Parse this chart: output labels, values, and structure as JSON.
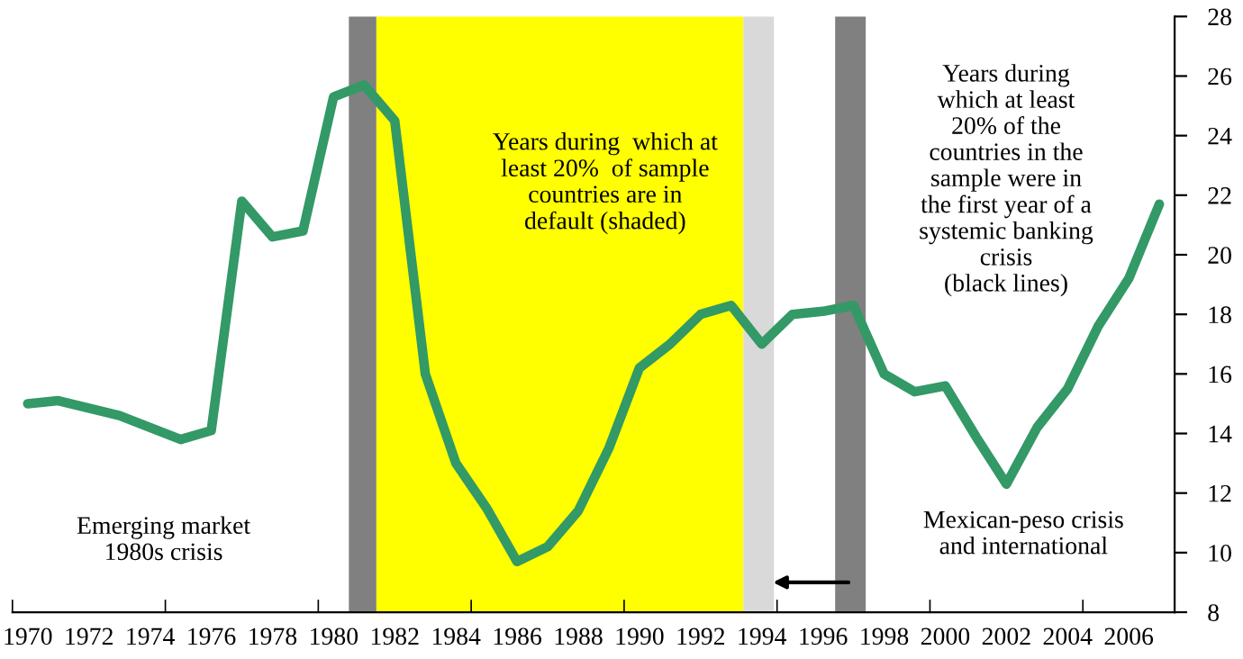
{
  "chart_data": {
    "type": "line",
    "x": [
      1970,
      1971,
      1972,
      1973,
      1974,
      1975,
      1976,
      1977,
      1978,
      1979,
      1980,
      1981,
      1982,
      1983,
      1984,
      1985,
      1986,
      1987,
      1988,
      1989,
      1990,
      1991,
      1992,
      1993,
      1994,
      1995,
      1996,
      1997,
      1998,
      1999,
      2000,
      2001,
      2002,
      2003,
      2004,
      2005,
      2006,
      2007
    ],
    "series": [
      {
        "color": "#339966",
        "values": [
          15.0,
          15.1,
          14.85,
          14.6,
          14.2,
          13.8,
          14.1,
          21.8,
          20.6,
          20.8,
          25.3,
          25.7,
          24.5,
          16.0,
          13.0,
          11.5,
          9.7,
          10.2,
          11.4,
          13.5,
          16.2,
          17.0,
          18.0,
          18.3,
          17.0,
          18.0,
          18.1,
          18.3,
          16.0,
          15.4,
          15.6,
          13.9,
          12.3,
          14.2,
          15.5,
          17.6,
          19.2,
          21.7
        ]
      }
    ],
    "xlim": [
      1969.5,
      2007.5
    ],
    "xticks": [
      {
        "value": 1970,
        "label": "1970"
      },
      {
        "value": 1972,
        "label": "1972"
      },
      {
        "value": 1974,
        "label": "1974"
      },
      {
        "value": 1976,
        "label": "1976"
      },
      {
        "value": 1978,
        "label": "1978"
      },
      {
        "value": 1980,
        "label": "1980"
      },
      {
        "value": 1982,
        "label": "1982"
      },
      {
        "value": 1984,
        "label": "1984"
      },
      {
        "value": 1986,
        "label": "1986"
      },
      {
        "value": 1988,
        "label": "1988"
      },
      {
        "value": 1990,
        "label": "1990"
      },
      {
        "value": 1992,
        "label": "1992"
      },
      {
        "value": 1994,
        "label": "1994"
      },
      {
        "value": 1996,
        "label": "1996"
      },
      {
        "value": 1998,
        "label": "1998"
      },
      {
        "value": 2000,
        "label": "2000"
      },
      {
        "value": 2002,
        "label": "2002"
      },
      {
        "value": 2004,
        "label": "2004"
      },
      {
        "value": 2006,
        "label": "2006"
      },
      {
        "value": 1969.5,
        "label": null
      },
      {
        "value": 1974.5,
        "label": null
      },
      {
        "value": 1979.5,
        "label": null
      },
      {
        "value": 1984.5,
        "label": null
      },
      {
        "value": 1989.5,
        "label": null
      },
      {
        "value": 1994.5,
        "label": null
      },
      {
        "value": 1999.5,
        "label": null
      },
      {
        "value": 2004.5,
        "label": null
      }
    ],
    "ylim": [
      8,
      28
    ],
    "yticks": [
      8,
      10,
      12,
      14,
      16,
      18,
      20,
      22,
      24,
      26,
      28
    ],
    "grid": false,
    "legend": false,
    "marker": "none",
    "line_style": "solid",
    "bands": [
      {
        "axis": "x",
        "from": 1980.5,
        "to": 1981.4,
        "color": "#808080"
      },
      {
        "axis": "x",
        "from": 1981.4,
        "to": 1993.4,
        "color": "#ffff00"
      },
      {
        "axis": "x",
        "from": 1993.4,
        "to": 1994.4,
        "color": "#d9d9d9"
      },
      {
        "axis": "x",
        "from": 1996.4,
        "to": 1997.4,
        "color": "#808080"
      }
    ],
    "annotations": [
      "Years during  which at\nleast 20%  of sample\ncountries are in\ndefault (shaded)",
      "Years during\nwhich at least\n20% of the\ncountries in the\nsample were in\nthe first year of a\nsystemic banking\ncrisis\n(black lines)",
      "Emerging market\n1980s crisis",
      "Mexican-peso crisis\nand international"
    ]
  }
}
